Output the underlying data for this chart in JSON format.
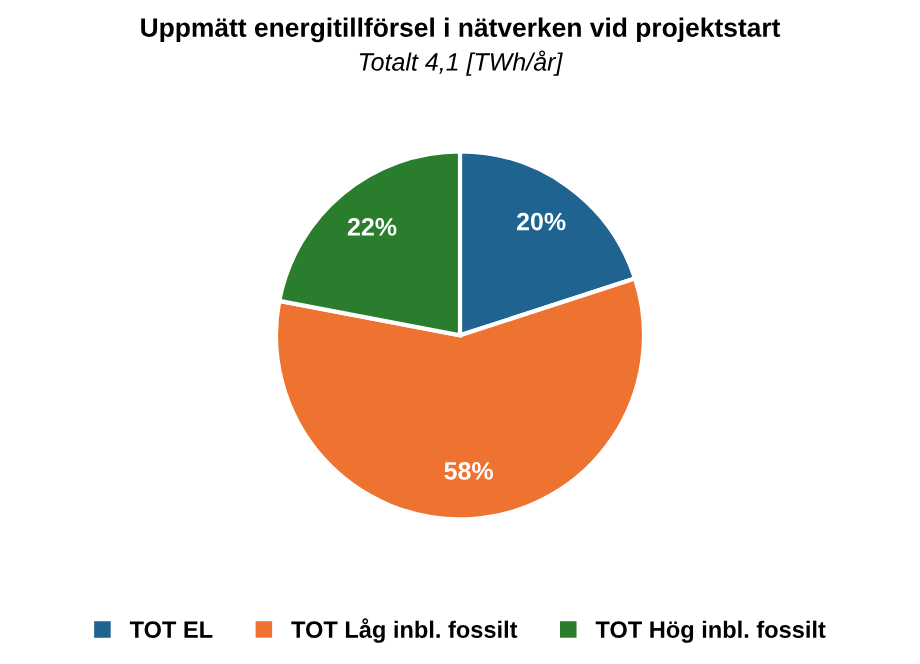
{
  "chart_data": {
    "type": "pie",
    "title": "Uppmätt energitillförsel i nätverken vid projektstart",
    "subtitle": "Totalt 4,1 [TWh/år]",
    "categories": [
      "TOT EL",
      "TOT Låg inbl. fossilt",
      "TOT Hög inbl. fossilt"
    ],
    "values": [
      20,
      58,
      22
    ],
    "colors": [
      "#1f6391",
      "#ee7330",
      "#2b7d2e"
    ],
    "value_labels": [
      "20%",
      "58%",
      "22%"
    ],
    "legend": "bottom"
  }
}
